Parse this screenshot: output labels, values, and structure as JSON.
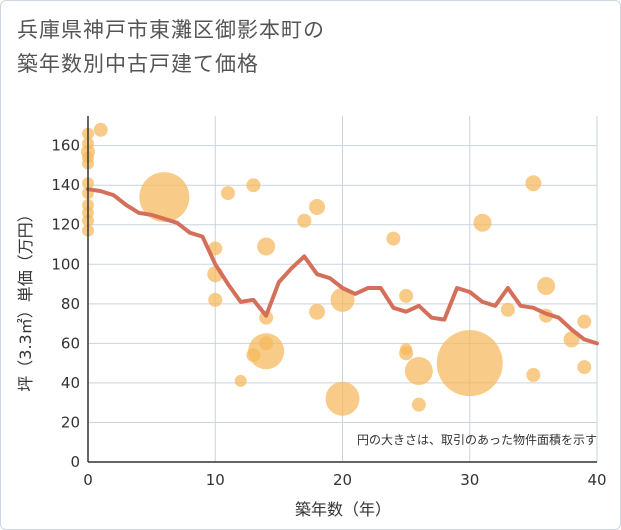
{
  "title_lines": [
    "兵庫県神戸市東灘区御影本町の",
    "築年数別中古戸建て価格"
  ],
  "colors": {
    "bubble": "#f5b95a",
    "line": "#d4705a",
    "grid": "#c9d3dd",
    "axis": "#333333"
  },
  "chart_data": {
    "type": "scatter",
    "xlabel": "築年数（年）",
    "ylabel": "坪（3.3㎡）単価（万円）",
    "xlim": [
      0,
      40
    ],
    "ylim": [
      0,
      175
    ],
    "xticks": [
      0,
      10,
      20,
      30,
      40
    ],
    "yticks": [
      0,
      20,
      40,
      60,
      80,
      100,
      120,
      140,
      160
    ],
    "grid": true,
    "note": "円の大きさは、取引のあった物件面積を示す",
    "bubbles": [
      {
        "x": 0,
        "y": 166,
        "r": 6
      },
      {
        "x": 0,
        "y": 161,
        "r": 6
      },
      {
        "x": 0,
        "y": 157,
        "r": 7
      },
      {
        "x": 0,
        "y": 154,
        "r": 6
      },
      {
        "x": 0,
        "y": 151,
        "r": 6
      },
      {
        "x": 0,
        "y": 141,
        "r": 6
      },
      {
        "x": 0,
        "y": 136,
        "r": 6
      },
      {
        "x": 0,
        "y": 130,
        "r": 6
      },
      {
        "x": 0,
        "y": 126,
        "r": 6
      },
      {
        "x": 0,
        "y": 122,
        "r": 6
      },
      {
        "x": 0,
        "y": 117,
        "r": 6
      },
      {
        "x": 1,
        "y": 168,
        "r": 7
      },
      {
        "x": 6,
        "y": 134,
        "r": 25
      },
      {
        "x": 10,
        "y": 108,
        "r": 7
      },
      {
        "x": 10,
        "y": 95,
        "r": 8
      },
      {
        "x": 10,
        "y": 82,
        "r": 7
      },
      {
        "x": 11,
        "y": 136,
        "r": 7
      },
      {
        "x": 12,
        "y": 41,
        "r": 6
      },
      {
        "x": 13,
        "y": 140,
        "r": 7
      },
      {
        "x": 13,
        "y": 54,
        "r": 7
      },
      {
        "x": 14,
        "y": 109,
        "r": 9
      },
      {
        "x": 14,
        "y": 73,
        "r": 7
      },
      {
        "x": 14,
        "y": 60,
        "r": 7
      },
      {
        "x": 14,
        "y": 56,
        "r": 18
      },
      {
        "x": 17,
        "y": 122,
        "r": 7
      },
      {
        "x": 18,
        "y": 129,
        "r": 8
      },
      {
        "x": 18,
        "y": 76,
        "r": 8
      },
      {
        "x": 20,
        "y": 82,
        "r": 12
      },
      {
        "x": 20,
        "y": 32,
        "r": 17
      },
      {
        "x": 24,
        "y": 113,
        "r": 7
      },
      {
        "x": 25,
        "y": 84,
        "r": 7
      },
      {
        "x": 25,
        "y": 57,
        "r": 6
      },
      {
        "x": 25,
        "y": 55,
        "r": 7
      },
      {
        "x": 26,
        "y": 46,
        "r": 14
      },
      {
        "x": 26,
        "y": 29,
        "r": 7
      },
      {
        "x": 30,
        "y": 50,
        "r": 33
      },
      {
        "x": 31,
        "y": 121,
        "r": 9
      },
      {
        "x": 33,
        "y": 77,
        "r": 7
      },
      {
        "x": 35,
        "y": 141,
        "r": 8
      },
      {
        "x": 35,
        "y": 44,
        "r": 7
      },
      {
        "x": 36,
        "y": 89,
        "r": 9
      },
      {
        "x": 36,
        "y": 74,
        "r": 7
      },
      {
        "x": 38,
        "y": 62,
        "r": 8
      },
      {
        "x": 39,
        "y": 71,
        "r": 7
      },
      {
        "x": 39,
        "y": 48,
        "r": 7
      }
    ],
    "trend": [
      {
        "x": 0,
        "y": 138
      },
      {
        "x": 1,
        "y": 137
      },
      {
        "x": 2,
        "y": 135
      },
      {
        "x": 3,
        "y": 130
      },
      {
        "x": 4,
        "y": 126
      },
      {
        "x": 5,
        "y": 125
      },
      {
        "x": 6,
        "y": 123
      },
      {
        "x": 7,
        "y": 121
      },
      {
        "x": 8,
        "y": 116
      },
      {
        "x": 9,
        "y": 114
      },
      {
        "x": 10,
        "y": 100
      },
      {
        "x": 11,
        "y": 90
      },
      {
        "x": 12,
        "y": 81
      },
      {
        "x": 13,
        "y": 82
      },
      {
        "x": 14,
        "y": 74
      },
      {
        "x": 15,
        "y": 91
      },
      {
        "x": 16,
        "y": 98
      },
      {
        "x": 17,
        "y": 104
      },
      {
        "x": 18,
        "y": 95
      },
      {
        "x": 19,
        "y": 93
      },
      {
        "x": 20,
        "y": 88
      },
      {
        "x": 21,
        "y": 85
      },
      {
        "x": 22,
        "y": 88
      },
      {
        "x": 23,
        "y": 88
      },
      {
        "x": 24,
        "y": 78
      },
      {
        "x": 25,
        "y": 76
      },
      {
        "x": 26,
        "y": 79
      },
      {
        "x": 27,
        "y": 73
      },
      {
        "x": 28,
        "y": 72
      },
      {
        "x": 29,
        "y": 88
      },
      {
        "x": 30,
        "y": 86
      },
      {
        "x": 31,
        "y": 81
      },
      {
        "x": 32,
        "y": 79
      },
      {
        "x": 33,
        "y": 88
      },
      {
        "x": 34,
        "y": 79
      },
      {
        "x": 35,
        "y": 78
      },
      {
        "x": 36,
        "y": 75
      },
      {
        "x": 37,
        "y": 73
      },
      {
        "x": 38,
        "y": 67
      },
      {
        "x": 39,
        "y": 62
      },
      {
        "x": 40,
        "y": 60
      }
    ]
  }
}
